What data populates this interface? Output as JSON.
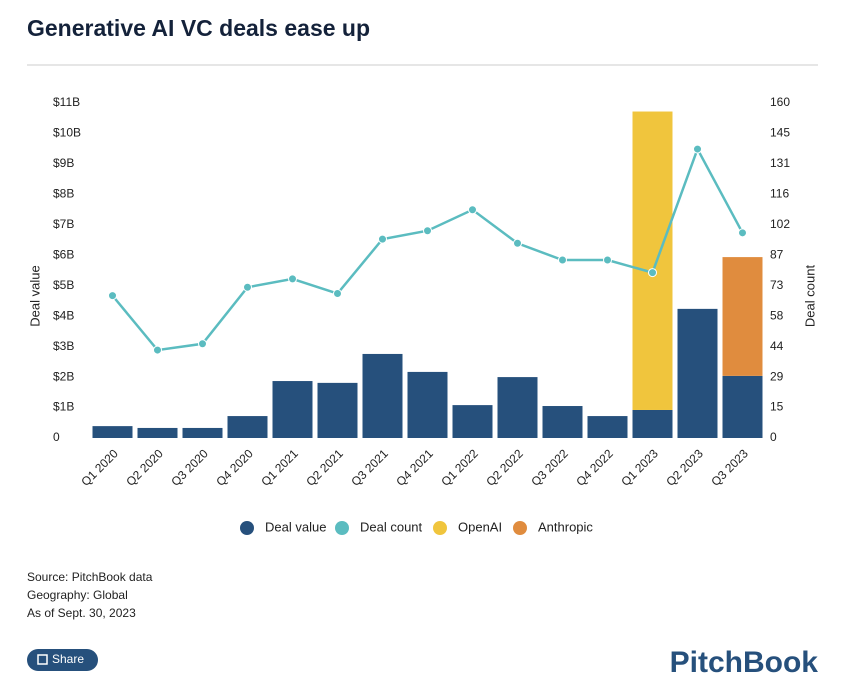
{
  "chart_data": {
    "type": "bar",
    "stacked": true,
    "title": "Generative AI VC deals ease up",
    "y_label": "Deal value",
    "y2_label": "Deal count",
    "categories": [
      "Q1 2020",
      "Q2 2020",
      "Q3 2020",
      "Q4 2020",
      "Q1 2021",
      "Q2 2021",
      "Q3 2021",
      "Q4 2021",
      "Q1 2022",
      "Q2 2022",
      "Q3 2022",
      "Q4 2022",
      "Q1 2023",
      "Q2 2023",
      "Q3 2023"
    ],
    "series": [
      {
        "name": "Deal value",
        "type": "bar",
        "color": "#26507c",
        "values": [
          0.39,
          0.33,
          0.33,
          0.72,
          1.87,
          1.81,
          2.76,
          2.17,
          1.08,
          2.0,
          1.05,
          0.72,
          0.92,
          4.24,
          2.04
        ]
      },
      {
        "name": "Deal count",
        "type": "line",
        "axis": "y2",
        "color": "#5bbcc0",
        "values": [
          68,
          42,
          45,
          72,
          76,
          69,
          95,
          99,
          109,
          93,
          85,
          85,
          79,
          138,
          98
        ]
      },
      {
        "name": "OpenAI",
        "type": "bar",
        "color": "#f0c53d",
        "values": [
          null,
          null,
          null,
          null,
          null,
          null,
          null,
          null,
          null,
          null,
          null,
          null,
          9.8,
          null,
          null
        ]
      },
      {
        "name": "Anthropic",
        "type": "bar",
        "color": "#e08c3e",
        "values": [
          null,
          null,
          null,
          null,
          null,
          null,
          null,
          null,
          null,
          null,
          null,
          null,
          null,
          null,
          3.9
        ]
      }
    ],
    "ylim": [
      0,
      11
    ],
    "yticks": [
      0,
      {
        "value": 1,
        "label": "$1B"
      },
      {
        "value": 2,
        "label": "$2B"
      },
      {
        "value": 3,
        "label": "$3B"
      },
      {
        "value": 4,
        "label": "$4B"
      },
      {
        "value": 5,
        "label": "$5B"
      },
      {
        "value": 6,
        "label": "$6B"
      },
      {
        "value": 7,
        "label": "$7B"
      },
      {
        "value": 8,
        "label": "$8B"
      },
      {
        "value": 9,
        "label": "$9B"
      },
      {
        "value": 10,
        "label": "$10B"
      },
      {
        "value": 11,
        "label": "$11B"
      }
    ],
    "y2lim": [
      0,
      160
    ],
    "y2ticks": [
      0,
      {
        "value": 14.55,
        "label": "15"
      },
      {
        "value": 29.09,
        "label": "29"
      },
      {
        "value": 43.64,
        "label": "44"
      },
      {
        "value": 58.18,
        "label": "58"
      },
      {
        "value": 72.73,
        "label": "73"
      },
      {
        "value": 87.27,
        "label": "87"
      },
      {
        "value": 101.82,
        "label": "102"
      },
      {
        "value": 116.36,
        "label": "116"
      },
      {
        "value": 130.91,
        "label": "131"
      },
      {
        "value": 145.45,
        "label": "145"
      },
      160
    ],
    "grid": false
  },
  "footer": {
    "notes": [
      "Source: PitchBook data",
      "Geography: Global",
      "As of Sept. 30, 2023"
    ],
    "share": "Share",
    "logo": "PitchBook"
  }
}
